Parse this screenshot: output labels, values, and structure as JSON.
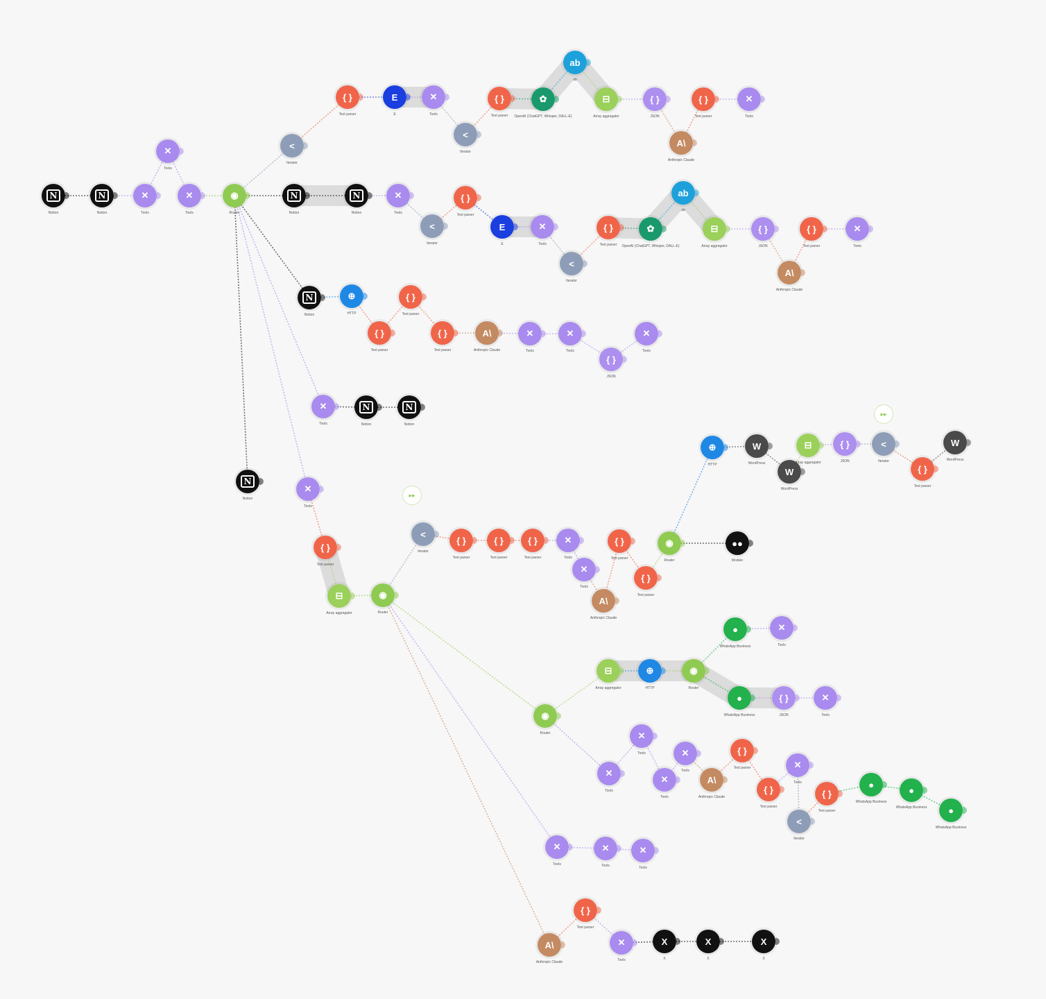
{
  "app_colors": {
    "notion": "#111111",
    "tools": "#a98bef",
    "router": "#8fcb52",
    "iterator": "#8e9db7",
    "textparser": "#f0654a",
    "e": "#1a3ee0",
    "ab": "#1ea1db",
    "openai": "#1a9a6c",
    "aggregator": "#9bd05a",
    "json": "#ad8ff0",
    "anthropic": "#c48a62",
    "http": "#1f88e5",
    "wordpress": "#4a4a4a",
    "whatsapp": "#22b14c",
    "x": "#111111",
    "dots": "#111111"
  },
  "app_glyphs": {
    "notion": "N",
    "tools": "✕",
    "router": "◉",
    "iterator": "<",
    "textparser": "{ }",
    "e": "E",
    "ab": "ab",
    "openai": "✿",
    "aggregator": "⊟",
    "json": "{ }",
    "anthropic": "A\\",
    "http": "⊕",
    "wordpress": "W",
    "whatsapp": "●",
    "x": "X",
    "dots": "●●"
  },
  "app_labels": {
    "notion": "Notion",
    "tools": "Tools",
    "router": "Router",
    "iterator": "Iterator",
    "textparser": "Text parser",
    "e": "E",
    "ab": "ab",
    "openai": "OpenAI (ChatGPT, Whisper, DALL-E)",
    "aggregator": "Array aggregator",
    "json": "JSON",
    "anthropic": "Anthropic Claude",
    "http": "HTTP",
    "wordpress": "WordPress",
    "whatsapp": "WhatsApp Business",
    "x": "X",
    "dots": "Module"
  },
  "nodes": [
    {
      "id": "a1",
      "app": "notion"
    },
    {
      "id": "a2",
      "app": "notion"
    },
    {
      "id": "a3",
      "app": "tools"
    },
    {
      "id": "a4",
      "app": "tools"
    },
    {
      "id": "a5",
      "app": "tools"
    },
    {
      "id": "r1",
      "app": "router"
    },
    {
      "id": "b1",
      "app": "iterator"
    },
    {
      "id": "b2",
      "app": "textparser"
    },
    {
      "id": "b3",
      "app": "e"
    },
    {
      "id": "b4",
      "app": "tools"
    },
    {
      "id": "b5",
      "app": "iterator"
    },
    {
      "id": "b6",
      "app": "textparser"
    },
    {
      "id": "b7",
      "app": "openai"
    },
    {
      "id": "b8",
      "app": "ab"
    },
    {
      "id": "b9",
      "app": "aggregator"
    },
    {
      "id": "b10",
      "app": "json"
    },
    {
      "id": "b11",
      "app": "anthropic"
    },
    {
      "id": "b12",
      "app": "textparser"
    },
    {
      "id": "b13",
      "app": "tools"
    },
    {
      "id": "c1",
      "app": "notion"
    },
    {
      "id": "c2",
      "app": "notion"
    },
    {
      "id": "c3",
      "app": "tools"
    },
    {
      "id": "c4",
      "app": "iterator"
    },
    {
      "id": "c5",
      "app": "textparser"
    },
    {
      "id": "c6",
      "app": "e"
    },
    {
      "id": "c7",
      "app": "tools"
    },
    {
      "id": "c8",
      "app": "iterator"
    },
    {
      "id": "c9",
      "app": "textparser"
    },
    {
      "id": "c10",
      "app": "openai"
    },
    {
      "id": "c11",
      "app": "ab"
    },
    {
      "id": "c12",
      "app": "aggregator"
    },
    {
      "id": "c13",
      "app": "json"
    },
    {
      "id": "c14",
      "app": "anthropic"
    },
    {
      "id": "c15",
      "app": "textparser"
    },
    {
      "id": "c16",
      "app": "tools"
    },
    {
      "id": "d1",
      "app": "notion"
    },
    {
      "id": "d2",
      "app": "http"
    },
    {
      "id": "d3",
      "app": "textparser"
    },
    {
      "id": "d4",
      "app": "textparser"
    },
    {
      "id": "d5",
      "app": "textparser"
    },
    {
      "id": "d6",
      "app": "anthropic"
    },
    {
      "id": "d7",
      "app": "tools"
    },
    {
      "id": "d8",
      "app": "tools"
    },
    {
      "id": "d9",
      "app": "json"
    },
    {
      "id": "d10",
      "app": "tools"
    },
    {
      "id": "e1",
      "app": "tools"
    },
    {
      "id": "e2",
      "app": "notion"
    },
    {
      "id": "e3",
      "app": "notion"
    },
    {
      "id": "f1",
      "app": "notion"
    },
    {
      "id": "g1",
      "app": "tools"
    },
    {
      "id": "g2",
      "app": "textparser"
    },
    {
      "id": "g3",
      "app": "aggregator"
    },
    {
      "id": "r2",
      "app": "router"
    },
    {
      "id": "h1",
      "app": "iterator"
    },
    {
      "id": "h2",
      "app": "textparser"
    },
    {
      "id": "h3",
      "app": "textparser"
    },
    {
      "id": "h4",
      "app": "textparser"
    },
    {
      "id": "h5",
      "app": "tools"
    },
    {
      "id": "h6",
      "app": "tools"
    },
    {
      "id": "h7",
      "app": "anthropic"
    },
    {
      "id": "h8",
      "app": "textparser"
    },
    {
      "id": "h9",
      "app": "textparser"
    },
    {
      "id": "r3",
      "app": "router"
    },
    {
      "id": "h10",
      "app": "dots"
    },
    {
      "id": "i1",
      "app": "http"
    },
    {
      "id": "i2",
      "app": "wordpress"
    },
    {
      "id": "i3",
      "app": "wordpress"
    },
    {
      "id": "i4",
      "app": "aggregator"
    },
    {
      "id": "i5",
      "app": "json"
    },
    {
      "id": "i6",
      "app": "iterator"
    },
    {
      "id": "i7",
      "app": "textparser"
    },
    {
      "id": "i8",
      "app": "wordpress"
    },
    {
      "id": "r4",
      "app": "router"
    },
    {
      "id": "j1",
      "app": "aggregator"
    },
    {
      "id": "j2",
      "app": "http"
    },
    {
      "id": "r5",
      "app": "router"
    },
    {
      "id": "j3",
      "app": "whatsapp"
    },
    {
      "id": "j4",
      "app": "tools"
    },
    {
      "id": "j5",
      "app": "whatsapp"
    },
    {
      "id": "j6",
      "app": "json"
    },
    {
      "id": "j7",
      "app": "tools"
    },
    {
      "id": "k1",
      "app": "tools"
    },
    {
      "id": "k2",
      "app": "tools"
    },
    {
      "id": "k3",
      "app": "tools"
    },
    {
      "id": "k4",
      "app": "tools"
    },
    {
      "id": "k5",
      "app": "anthropic"
    },
    {
      "id": "k6",
      "app": "textparser"
    },
    {
      "id": "k7",
      "app": "textparser"
    },
    {
      "id": "k8",
      "app": "tools"
    },
    {
      "id": "k9",
      "app": "iterator"
    },
    {
      "id": "k10",
      "app": "textparser"
    },
    {
      "id": "k11",
      "app": "whatsapp"
    },
    {
      "id": "k12",
      "app": "whatsapp"
    },
    {
      "id": "k13",
      "app": "whatsapp"
    },
    {
      "id": "l1",
      "app": "tools"
    },
    {
      "id": "l2",
      "app": "tools"
    },
    {
      "id": "l3",
      "app": "tools"
    },
    {
      "id": "m1",
      "app": "anthropic"
    },
    {
      "id": "m2",
      "app": "textparser"
    },
    {
      "id": "m3",
      "app": "tools"
    },
    {
      "id": "m4",
      "app": "x"
    },
    {
      "id": "m5",
      "app": "x"
    },
    {
      "id": "m6",
      "app": "x"
    }
  ],
  "chains": [
    [
      "a1",
      "a2",
      "a3",
      "a4",
      "a5",
      "r1"
    ],
    [
      "r1",
      "b1",
      "b2",
      "b3",
      "b4",
      "b5",
      "b6",
      "b7",
      "b8",
      "b9",
      "b10",
      "b11",
      "b12",
      "b13"
    ],
    [
      "r1",
      "c1",
      "c2",
      "c3",
      "c4",
      "c5",
      "c6",
      "c7",
      "c8",
      "c9",
      "c10",
      "c11",
      "c12",
      "c13",
      "c14",
      "c15",
      "c16"
    ],
    [
      "r1",
      "d1",
      "d2",
      "d3",
      "d4",
      "d5",
      "d6",
      "d7",
      "d8",
      "d9",
      "d10"
    ],
    [
      "r1",
      "e1",
      "e2",
      "e3"
    ],
    [
      "r1",
      "f1"
    ],
    [
      "r1",
      "g1",
      "g2",
      "g3",
      "r2"
    ],
    [
      "r2",
      "h1",
      "h2",
      "h3",
      "h4",
      "h5",
      "h6",
      "h7",
      "h8",
      "h9",
      "r3",
      "h10"
    ],
    [
      "r3",
      "i1",
      "i2",
      "i3",
      "i4",
      "i5",
      "i6",
      "i7",
      "i8"
    ],
    [
      "r2",
      "r4",
      "j1",
      "j2",
      "r5",
      "j3",
      "j4"
    ],
    [
      "r5",
      "j5",
      "j6",
      "j7"
    ],
    [
      "r4",
      "k1",
      "k2",
      "k3",
      "k4",
      "k5",
      "k6",
      "k7",
      "k8",
      "k9",
      "k10",
      "k11",
      "k12",
      "k13"
    ],
    [
      "r2",
      "l1",
      "l2",
      "l3"
    ],
    [
      "r2",
      "m1",
      "m2",
      "m3",
      "m4",
      "m5",
      "m6"
    ]
  ],
  "flow_icons": [
    "h1",
    "i6"
  ],
  "flow_icon_glyph": "▸▸"
}
